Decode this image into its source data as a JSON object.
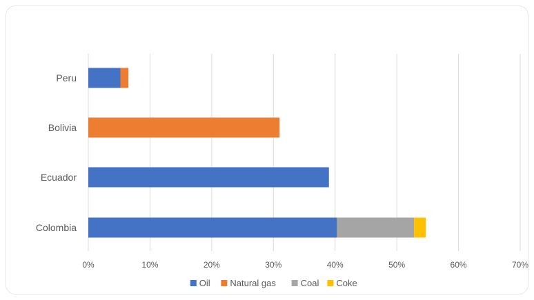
{
  "chart_data": {
    "type": "bar",
    "orientation": "horizontal",
    "stacked": true,
    "categories": [
      "Peru",
      "Bolivia",
      "Ecuador",
      "Colombia"
    ],
    "series": [
      {
        "name": "Oil",
        "color": "#4472C4",
        "values": [
          5.2,
          0,
          39,
          40.3
        ]
      },
      {
        "name": "Natural gas",
        "color": "#ED7D31",
        "values": [
          1.3,
          31,
          0,
          0
        ]
      },
      {
        "name": "Coal",
        "color": "#A5A5A5",
        "values": [
          0,
          0,
          0,
          12.5
        ]
      },
      {
        "name": "Coke",
        "color": "#FFC000",
        "values": [
          0,
          0,
          0,
          1.9
        ]
      }
    ],
    "xlim": [
      0,
      70
    ],
    "x_ticks": [
      "0%",
      "10%",
      "20%",
      "30%",
      "40%",
      "50%",
      "60%",
      "70%"
    ],
    "grid": "vertical",
    "legend_position": "bottom",
    "title": "",
    "xlabel": "",
    "ylabel": ""
  }
}
